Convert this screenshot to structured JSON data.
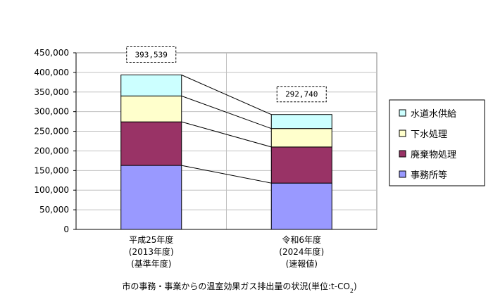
{
  "chart_data": {
    "type": "bar",
    "stacked": true,
    "categories": [
      [
        "平成25年度",
        "(2013年度)",
        "(基準年度)"
      ],
      [
        "令和6年度",
        "(2024年度)",
        "(速報値)"
      ]
    ],
    "series": [
      {
        "name": "事務所等",
        "values": [
          163000,
          118000
        ],
        "color": "#9999FF"
      },
      {
        "name": "廃棄物処理",
        "values": [
          111000,
          92000
        ],
        "color": "#993366"
      },
      {
        "name": "下水処理",
        "values": [
          66000,
          47000
        ],
        "color": "#FFFFCC"
      },
      {
        "name": "水道水供給",
        "values": [
          53539,
          35740
        ],
        "color": "#CCFFFF"
      }
    ],
    "totals": [
      "393,539",
      "292,740"
    ],
    "ylim": [
      0,
      450000
    ],
    "yticks": [
      0,
      50000,
      100000,
      150000,
      200000,
      250000,
      300000,
      350000,
      400000,
      450000
    ],
    "ytick_labels": [
      "0",
      "50,000",
      "100,000",
      "150,000",
      "200,000",
      "250,000",
      "300,000",
      "350,000",
      "400,000",
      "450,000"
    ],
    "grid": true,
    "legend_position": "right",
    "legend_order": [
      "水道水供給",
      "下水処理",
      "廃棄物処理",
      "事務所等"
    ],
    "title": "市の事務・事業からの温室効果ガス排出量の状況(単位:t-CO",
    "title_subscript": "2",
    "title_suffix": ")"
  }
}
